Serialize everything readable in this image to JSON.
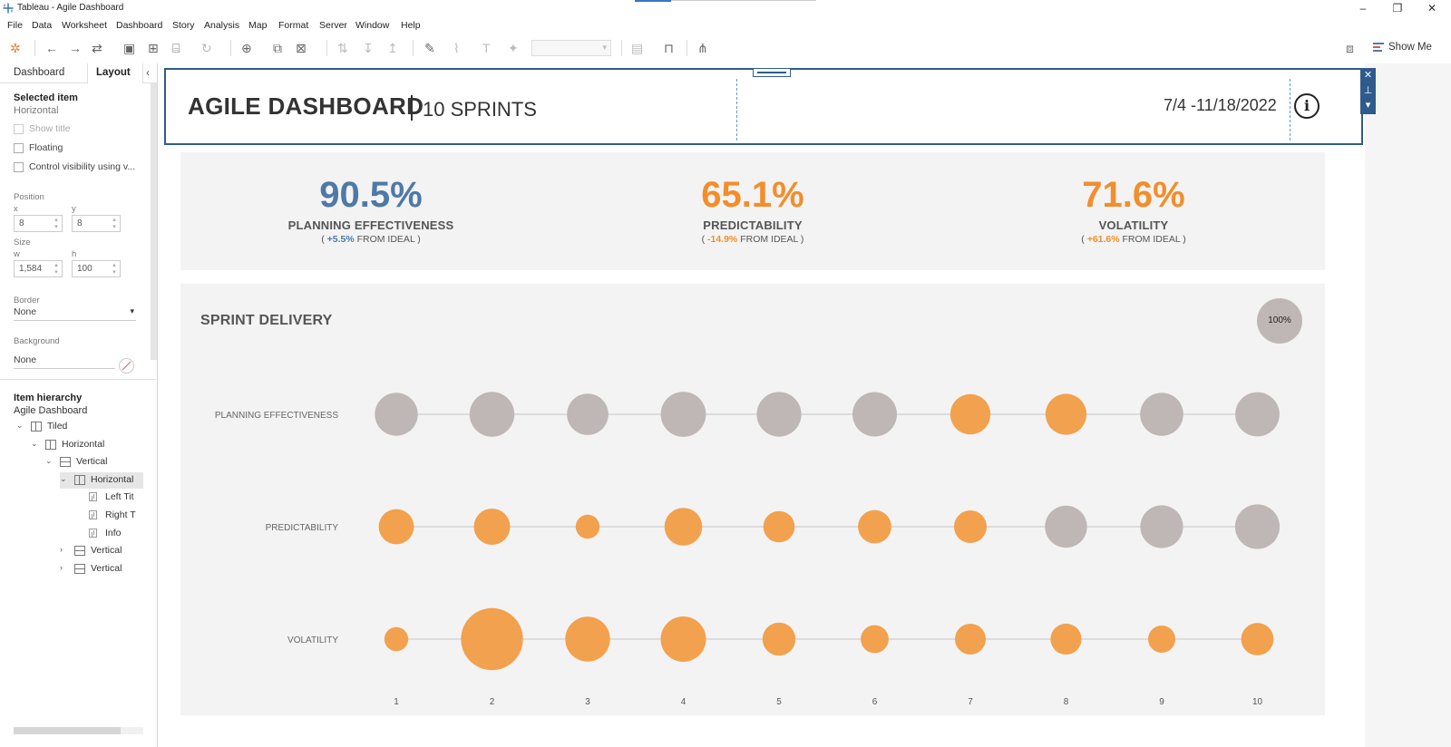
{
  "window": {
    "title": "Tableau - Agile Dashboard",
    "controls": [
      "–",
      "❐",
      "✕"
    ]
  },
  "menu": [
    "File",
    "Data",
    "Worksheet",
    "Dashboard",
    "Story",
    "Analysis",
    "Map",
    "Format",
    "Server",
    "Window",
    "Help"
  ],
  "toolbar": {
    "show_me": "Show Me"
  },
  "left_pane": {
    "tabs": [
      "Dashboard",
      "Layout"
    ],
    "selected_item_heading": "Selected item",
    "selected_item_value": "Horizontal",
    "checkboxes": [
      {
        "label": "Show title",
        "disabled": true
      },
      {
        "label": "Floating",
        "disabled": false
      },
      {
        "label": "Control visibility using v...",
        "disabled": false
      }
    ],
    "position_label": "Position",
    "x_label": "x",
    "x_value": "8",
    "y_label": "y",
    "y_value": "8",
    "size_label": "Size",
    "w_label": "w",
    "w_value": "1,584",
    "h_label": "h",
    "h_value": "100",
    "border_label": "Border",
    "border_value": "None",
    "background_label": "Background",
    "background_value": "None",
    "hierarchy_heading": "Item hierarchy",
    "hierarchy_root": "Agile Dashboard",
    "tree": [
      {
        "label": "Tiled",
        "icon": "horizontal-container-icon",
        "chevron": "⌄",
        "depth": 0
      },
      {
        "label": "Horizontal",
        "icon": "horizontal-container-icon",
        "chevron": "⌄",
        "depth": 1
      },
      {
        "label": "Vertical",
        "icon": "vertical-container-icon",
        "chevron": "⌄",
        "depth": 2
      },
      {
        "label": "Horizontal",
        "icon": "horizontal-container-icon",
        "chevron": "⌄",
        "depth": 3,
        "selected": true
      },
      {
        "label": "Left Tit",
        "icon": "sheet-icon",
        "chevron": "",
        "depth": 4
      },
      {
        "label": "Right T",
        "icon": "sheet-icon",
        "chevron": "",
        "depth": 4
      },
      {
        "label": "Info",
        "icon": "sheet-icon",
        "chevron": "",
        "depth": 4
      },
      {
        "label": "Vertical",
        "icon": "vertical-container-icon",
        "chevron": "›",
        "depth": 3
      },
      {
        "label": "Vertical",
        "icon": "vertical-container-icon",
        "chevron": "›",
        "depth": 3
      }
    ]
  },
  "dashboard": {
    "title": "AGILE DASHBOARD",
    "separator": "|",
    "subtitle": "10 SPRINTS",
    "date_range": "7/4 -11/18/2022",
    "info_glyph": "i",
    "kpis": [
      {
        "value": "90.5%",
        "label": "PLANNING EFFECTIVENESS",
        "open": "( ",
        "delta": "+5.5%",
        "suffix": " FROM IDEAL )",
        "color": "#4e79a7"
      },
      {
        "value": "65.1%",
        "label": "PREDICTABILITY",
        "open": "( ",
        "delta": "-14.9%",
        "suffix": " FROM IDEAL )",
        "color": "#f28e2b"
      },
      {
        "value": "71.6%",
        "label": "VOLATILITY",
        "open": "( ",
        "delta": "+61.6%",
        "suffix": " FROM IDEAL )",
        "color": "#f28e2b"
      }
    ],
    "sprint_title": "SPRINT DELIVERY",
    "legend_label": "100%"
  },
  "chart_data": {
    "type": "scatter",
    "title": "SPRINT DELIVERY",
    "categories": [
      "1",
      "2",
      "3",
      "4",
      "5",
      "6",
      "7",
      "8",
      "9",
      "10"
    ],
    "rows": [
      "PLANNING EFFECTIVENESS",
      "PREDICTABILITY",
      "VOLATILITY"
    ],
    "size_reference": {
      "label": "100%",
      "value": 100
    },
    "series": [
      {
        "name": "PLANNING EFFECTIVENESS",
        "values": [
          90,
          98,
          83,
          99,
          97,
          96,
          79,
          82,
          91,
          95
        ],
        "colors": [
          "grey",
          "grey",
          "grey",
          "grey",
          "grey",
          "grey",
          "orange",
          "orange",
          "grey",
          "grey"
        ]
      },
      {
        "name": "PREDICTABILITY",
        "values": [
          60,
          64,
          28,
          69,
          48,
          54,
          52,
          86,
          89,
          97
        ],
        "colors": [
          "orange",
          "orange",
          "orange",
          "orange",
          "orange",
          "orange",
          "orange",
          "grey",
          "grey",
          "grey"
        ]
      },
      {
        "name": "VOLATILITY",
        "values": [
          28,
          187,
          98,
          100,
          53,
          38,
          46,
          47,
          36,
          51
        ],
        "colors": [
          "orange",
          "orange",
          "orange",
          "orange",
          "orange",
          "orange",
          "orange",
          "orange",
          "orange",
          "orange"
        ]
      }
    ],
    "palette": {
      "orange": "#f2a14f",
      "grey": "#bfb7b5",
      "line": "#dcdcdc"
    }
  }
}
